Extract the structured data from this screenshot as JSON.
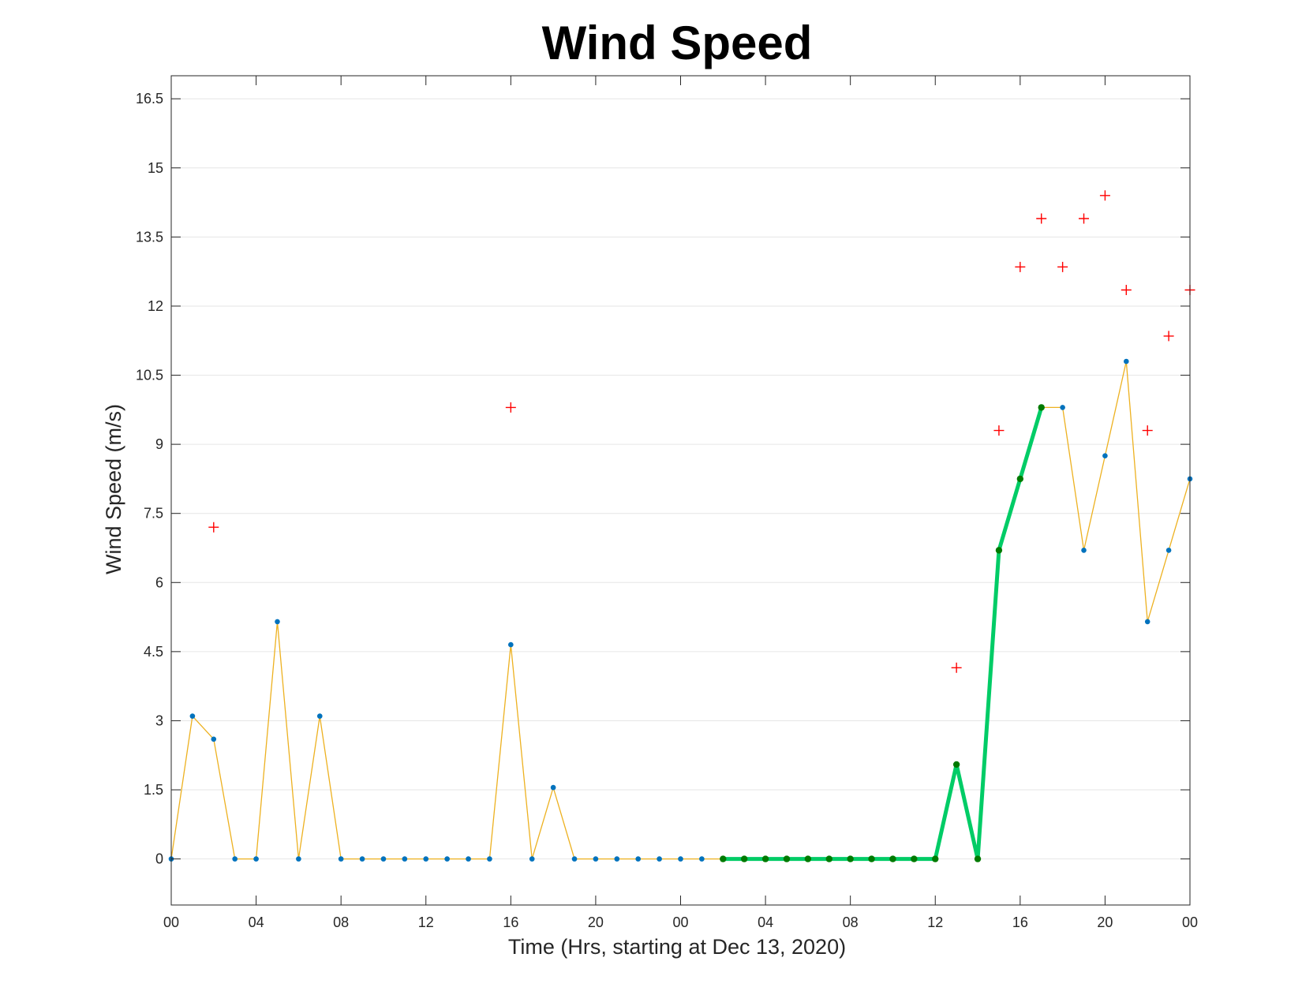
{
  "chart_data": {
    "type": "line",
    "title": "Wind Speed",
    "xlabel": "Time (Hrs, starting at Dec 13, 2020)",
    "ylabel": "Wind Speed (m/s)",
    "ylim": [
      -1,
      17
    ],
    "xlim": [
      0,
      48
    ],
    "grid": true,
    "legend": "none",
    "x_tick_values": [
      0,
      4,
      8,
      12,
      16,
      20,
      24,
      28,
      32,
      36,
      40,
      44,
      48
    ],
    "x_tick_labels": [
      "00",
      "04",
      "08",
      "12",
      "16",
      "20",
      "00",
      "04",
      "08",
      "12",
      "16",
      "20",
      "00"
    ],
    "y_tick_values": [
      0,
      1.5,
      3,
      4.5,
      6,
      7.5,
      9,
      10.5,
      12,
      13.5,
      15,
      16.5
    ],
    "y_tick_labels": [
      "0",
      "1.5",
      "3",
      "4.5",
      "6",
      "7.5",
      "9",
      "10.5",
      "12",
      "13.5",
      "15",
      "16.5"
    ],
    "colors": {
      "wind_line": "#edb120",
      "wind_marker": "#0072bd",
      "highlight_line": "#00cc66",
      "highlight_marker": "#007a00",
      "gust_marker": "#ff0000",
      "grid": "#e6e6e6",
      "axis": "#262626"
    },
    "series": [
      {
        "style": "line-dots",
        "x": [
          0,
          1,
          2,
          3,
          4,
          5,
          6,
          7,
          8,
          9,
          10,
          11,
          12,
          13,
          14,
          15,
          16,
          17,
          18,
          19,
          20,
          21,
          22,
          23,
          24,
          25,
          26,
          27,
          28,
          29,
          30,
          31,
          32,
          33,
          34,
          35,
          36,
          37,
          38,
          39,
          40,
          41,
          42,
          43,
          44,
          45,
          46,
          47,
          48
        ],
        "values": [
          0,
          3.1,
          2.6,
          0,
          0,
          5.15,
          0,
          3.1,
          0,
          0,
          0,
          0,
          0,
          0,
          0,
          0,
          4.65,
          0,
          1.55,
          0,
          0,
          0,
          0,
          0,
          0,
          0,
          0,
          0,
          0,
          0,
          0,
          0,
          0,
          0,
          0,
          0,
          0,
          2.05,
          0,
          6.7,
          8.25,
          9.8,
          9.8,
          6.7,
          8.75,
          10.8,
          5.15,
          6.7,
          8.25
        ]
      },
      {
        "style": "thick-line-dots",
        "x": [
          26,
          27,
          28,
          29,
          30,
          31,
          32,
          33,
          34,
          35,
          36,
          37,
          38,
          39,
          40,
          41
        ],
        "values": [
          0,
          0,
          0,
          0,
          0,
          0,
          0,
          0,
          0,
          0,
          0,
          2.05,
          0,
          6.7,
          8.25,
          9.8
        ]
      },
      {
        "style": "plus-markers",
        "x": [
          2,
          16,
          37,
          39,
          40,
          41,
          42,
          43,
          44,
          45,
          46,
          47,
          48
        ],
        "values": [
          7.2,
          9.8,
          4.15,
          9.3,
          12.85,
          13.9,
          12.85,
          13.9,
          14.4,
          12.35,
          9.3,
          11.35,
          12.35
        ]
      }
    ]
  }
}
